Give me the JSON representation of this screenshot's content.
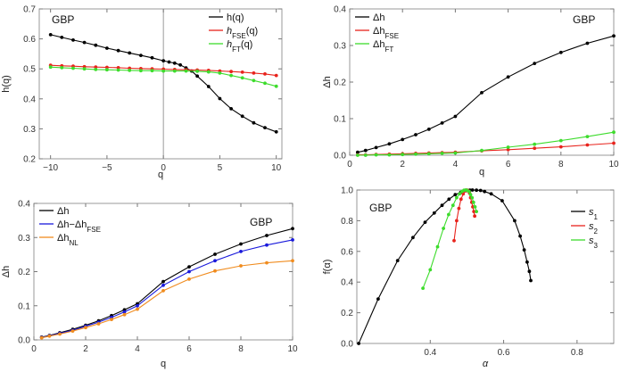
{
  "chart_data": [
    {
      "type": "line",
      "panel_label": "GBP",
      "xlabel": "q",
      "ylabel": "h(q)",
      "xlim": [
        -11,
        10.5
      ],
      "ylim": [
        0.2,
        0.7
      ],
      "xticks": [
        "-10",
        "-5",
        "0",
        "5",
        "10"
      ],
      "yticks": [
        "0.2",
        "0.3",
        "0.4",
        "0.5",
        "0.6",
        "0.7"
      ],
      "legend_position": "top-right",
      "series": [
        {
          "name": "h(q)",
          "color": "#000000",
          "x": [
            -10,
            -9,
            -8,
            -7,
            -6,
            -5,
            -4,
            -3,
            -2,
            -1,
            0,
            0.5,
            1,
            1.5,
            2,
            2.5,
            3,
            4,
            5,
            6,
            7,
            8,
            9,
            10
          ],
          "y": [
            0.614,
            0.605,
            0.596,
            0.588,
            0.579,
            0.569,
            0.561,
            0.553,
            0.545,
            0.537,
            0.527,
            0.523,
            0.519,
            0.513,
            0.503,
            0.493,
            0.476,
            0.441,
            0.401,
            0.367,
            0.342,
            0.32,
            0.304,
            0.29
          ]
        },
        {
          "name": "hFSE(q)",
          "color": "#e8231c",
          "x": [
            -10,
            -9,
            -8,
            -7,
            -6,
            -5,
            -4,
            -3,
            -2,
            -1,
            0,
            1,
            2,
            3,
            4,
            5,
            6,
            7,
            8,
            9,
            10
          ],
          "y": [
            0.512,
            0.51,
            0.509,
            0.507,
            0.506,
            0.505,
            0.504,
            0.502,
            0.501,
            0.5,
            0.499,
            0.498,
            0.497,
            0.496,
            0.495,
            0.493,
            0.491,
            0.489,
            0.486,
            0.483,
            0.478
          ]
        },
        {
          "name": "hFT(q)",
          "color": "#3ddc2c",
          "x": [
            -10,
            -9,
            -8,
            -7,
            -6,
            -5,
            -4,
            -3,
            -2,
            -1,
            0,
            1,
            2,
            3,
            4,
            5,
            6,
            7,
            8,
            9,
            10
          ],
          "y": [
            0.506,
            0.504,
            0.502,
            0.5,
            0.498,
            0.497,
            0.496,
            0.495,
            0.494,
            0.494,
            0.493,
            0.493,
            0.493,
            0.492,
            0.49,
            0.486,
            0.478,
            0.47,
            0.461,
            0.452,
            0.442
          ]
        }
      ]
    },
    {
      "type": "line",
      "panel_label": "GBP",
      "xlabel": "q",
      "ylabel": "Δh",
      "xlim": [
        0,
        10
      ],
      "ylim": [
        0,
        0.4
      ],
      "xticks": [
        "0",
        "2",
        "4",
        "6",
        "8",
        "10"
      ],
      "yticks": [
        "0.0",
        "0.1",
        "0.2",
        "0.3",
        "0.4"
      ],
      "legend_position": "top-left",
      "series": [
        {
          "name": "Δh",
          "color": "#000000",
          "x": [
            0.3,
            0.6,
            1,
            1.5,
            2,
            2.5,
            3,
            3.5,
            4,
            5,
            6,
            7,
            8,
            9,
            10
          ],
          "y": [
            0.008,
            0.013,
            0.021,
            0.031,
            0.043,
            0.056,
            0.071,
            0.088,
            0.106,
            0.171,
            0.214,
            0.251,
            0.281,
            0.306,
            0.326
          ]
        },
        {
          "name": "ΔhFSE",
          "color": "#e8231c",
          "x": [
            0.3,
            0.6,
            1,
            1.5,
            2,
            2.5,
            3,
            3.5,
            4,
            5,
            6,
            7,
            8,
            9,
            10
          ],
          "y": [
            0.001,
            0.001,
            0.002,
            0.003,
            0.004,
            0.005,
            0.006,
            0.007,
            0.008,
            0.012,
            0.015,
            0.019,
            0.023,
            0.028,
            0.033
          ]
        },
        {
          "name": "ΔhFT",
          "color": "#3ddc2c",
          "x": [
            0.3,
            0.6,
            1,
            1.5,
            2,
            2.5,
            3,
            3.5,
            4,
            5,
            6,
            7,
            8,
            9,
            10
          ],
          "y": [
            0.0,
            0.0,
            0.001,
            0.001,
            0.002,
            0.003,
            0.004,
            0.005,
            0.006,
            0.013,
            0.022,
            0.03,
            0.04,
            0.051,
            0.063
          ]
        }
      ]
    },
    {
      "type": "line",
      "panel_label": "GBP",
      "xlabel": "q",
      "ylabel": "Δh",
      "xlim": [
        0,
        10
      ],
      "ylim": [
        0,
        0.4
      ],
      "xticks": [
        "0",
        "2",
        "4",
        "6",
        "8",
        "10"
      ],
      "yticks": [
        "0.0",
        "0.1",
        "0.2",
        "0.3",
        "0.4"
      ],
      "legend_position": "top-left",
      "series": [
        {
          "name": "Δh",
          "color": "#000000",
          "x": [
            0.3,
            0.6,
            1,
            1.5,
            2,
            2.5,
            3,
            3.5,
            4,
            5,
            6,
            7,
            8,
            9,
            10
          ],
          "y": [
            0.008,
            0.013,
            0.021,
            0.031,
            0.043,
            0.056,
            0.071,
            0.088,
            0.106,
            0.171,
            0.214,
            0.251,
            0.281,
            0.306,
            0.326
          ]
        },
        {
          "name": "Δh−ΔhFSE",
          "color": "#1a1adb",
          "x": [
            0.3,
            0.6,
            1,
            1.5,
            2,
            2.5,
            3,
            3.5,
            4,
            5,
            6,
            7,
            8,
            9,
            10
          ],
          "y": [
            0.007,
            0.012,
            0.019,
            0.028,
            0.04,
            0.052,
            0.066,
            0.082,
            0.1,
            0.16,
            0.2,
            0.232,
            0.259,
            0.278,
            0.293
          ]
        },
        {
          "name": "ΔhNL",
          "color": "#f08c1f",
          "x": [
            0.3,
            0.6,
            1,
            1.5,
            2,
            2.5,
            3,
            3.5,
            4,
            5,
            6,
            7,
            8,
            9,
            10
          ],
          "y": [
            0.006,
            0.011,
            0.017,
            0.026,
            0.036,
            0.047,
            0.06,
            0.074,
            0.09,
            0.144,
            0.178,
            0.202,
            0.217,
            0.226,
            0.232
          ]
        }
      ]
    },
    {
      "type": "line",
      "panel_label": "GBP",
      "xlabel": "α",
      "ylabel": "f(α)",
      "xlim": [
        0.2,
        0.9
      ],
      "ylim": [
        0,
        1.0
      ],
      "xticks": [
        "0.4",
        "0.6",
        "0.8"
      ],
      "yticks": [
        "0.0",
        "0.2",
        "0.4",
        "0.6",
        "0.8",
        "1.0"
      ],
      "legend_position": "top-right",
      "series": [
        {
          "name": "s1",
          "color": "#000000",
          "x": [
            0.205,
            0.258,
            0.311,
            0.353,
            0.386,
            0.411,
            0.432,
            0.451,
            0.468,
            0.483,
            0.497,
            0.508,
            0.515,
            0.526,
            0.537,
            0.548,
            0.566,
            0.596,
            0.63,
            0.645,
            0.656,
            0.664,
            0.67,
            0.674
          ],
          "y": [
            0.0,
            0.29,
            0.54,
            0.69,
            0.79,
            0.85,
            0.9,
            0.94,
            0.97,
            0.985,
            0.995,
            0.999,
            1.0,
            0.999,
            0.997,
            0.99,
            0.975,
            0.93,
            0.8,
            0.7,
            0.61,
            0.53,
            0.47,
            0.41
          ]
        },
        {
          "name": "s2",
          "color": "#e8231c",
          "x": [
            0.465,
            0.472,
            0.478,
            0.484,
            0.49,
            0.496,
            0.5,
            0.503,
            0.507,
            0.51,
            0.513,
            0.516,
            0.519,
            0.521
          ],
          "y": [
            0.67,
            0.8,
            0.88,
            0.94,
            0.975,
            0.995,
            1.0,
            0.995,
            0.98,
            0.95,
            0.92,
            0.89,
            0.86,
            0.83
          ]
        },
        {
          "name": "s3",
          "color": "#3ddc2c",
          "x": [
            0.38,
            0.4,
            0.42,
            0.436,
            0.45,
            0.462,
            0.472,
            0.48,
            0.486,
            0.492,
            0.496,
            0.5,
            0.506,
            0.51,
            0.514,
            0.518,
            0.522,
            0.526
          ],
          "y": [
            0.36,
            0.48,
            0.63,
            0.75,
            0.84,
            0.9,
            0.95,
            0.975,
            0.99,
            0.998,
            1.0,
            0.998,
            0.99,
            0.97,
            0.95,
            0.92,
            0.89,
            0.86
          ]
        }
      ]
    }
  ]
}
